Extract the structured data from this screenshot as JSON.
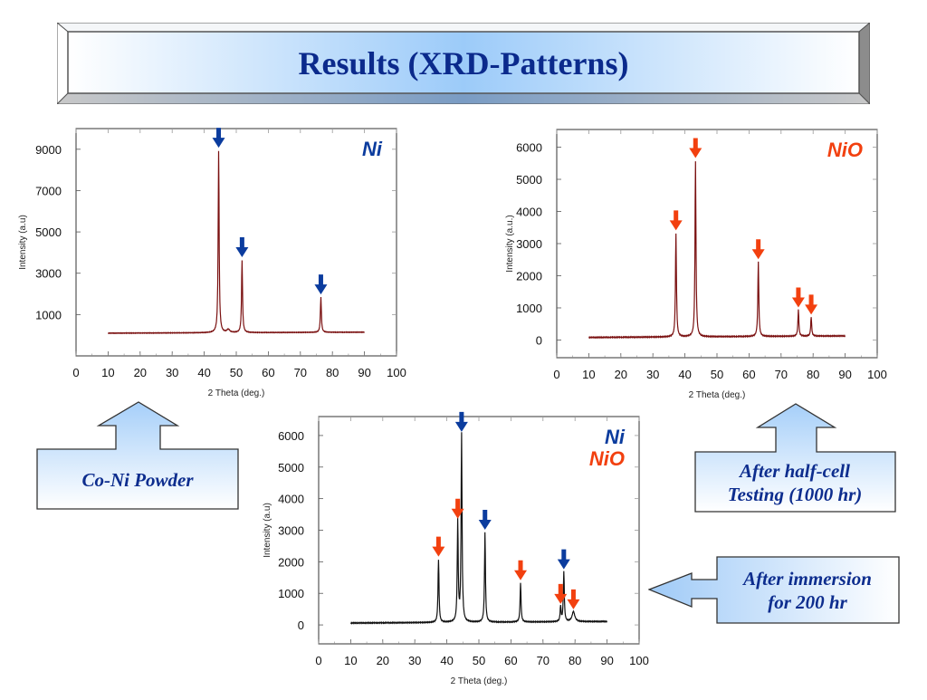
{
  "title": "Results (XRD-Patterns)",
  "colors": {
    "title_text": "#0b2a8c",
    "ni_arrow": "#0b3c9e",
    "nio_arrow": "#f2400f",
    "trace_single": "#7a1010",
    "trace_mixed": "#111111",
    "callout_fill_top": "#a9d1fb",
    "callout_fill_bottom": "#ffffff"
  },
  "callouts": {
    "co_ni_powder": "Co-Ni Powder",
    "half_cell_line1": "After half-cell",
    "half_cell_line2": "Testing (1000 hr)",
    "immersion_line1": "After immersion",
    "immersion_line2": "for 200 hr"
  },
  "chart_data": [
    {
      "type": "line",
      "title": "",
      "legend": [
        "Ni"
      ],
      "legend_position": "top-right",
      "xlabel": "2 Theta (deg.)",
      "ylabel": "Intensity (a.u)",
      "xlim": [
        0,
        100
      ],
      "x_ticks": [
        0,
        10,
        20,
        30,
        40,
        50,
        60,
        70,
        80,
        90,
        100
      ],
      "y_ticks": [
        1000,
        3000,
        5000,
        7000,
        9000
      ],
      "ylim": [
        -1000,
        10000
      ],
      "grid": false,
      "series": [
        {
          "name": "Co-Ni Powder",
          "baseline": 100,
          "x_range": [
            10,
            90
          ],
          "peaks": [
            {
              "x": 44.5,
              "y": 8900,
              "phase": "Ni"
            },
            {
              "x": 47.5,
              "y": 250,
              "phase": ""
            },
            {
              "x": 51.8,
              "y": 3600,
              "phase": "Ni"
            },
            {
              "x": 76.4,
              "y": 1800,
              "phase": "Ni"
            }
          ]
        }
      ],
      "annotations": [
        {
          "x": 44.5,
          "label": "Ni arrow"
        },
        {
          "x": 51.8,
          "label": "Ni arrow"
        },
        {
          "x": 76.4,
          "label": "Ni arrow"
        }
      ]
    },
    {
      "type": "line",
      "title": "",
      "legend": [
        "NiO"
      ],
      "legend_position": "top-right",
      "xlabel": "2 Theta (deg.)",
      "ylabel": "Intensity (a.u.)",
      "xlim": [
        0,
        100
      ],
      "x_ticks": [
        0,
        10,
        20,
        30,
        40,
        50,
        60,
        70,
        80,
        90,
        100
      ],
      "y_ticks": [
        0,
        1000,
        2000,
        3000,
        4000,
        5000,
        6000
      ],
      "ylim": [
        -550,
        6550
      ],
      "grid": false,
      "series": [
        {
          "name": "After half-cell Testing (1000 hr)",
          "baseline": 80,
          "x_range": [
            10,
            90
          ],
          "peaks": [
            {
              "x": 37.2,
              "y": 3300,
              "phase": "NiO"
            },
            {
              "x": 43.3,
              "y": 5550,
              "phase": "NiO"
            },
            {
              "x": 62.9,
              "y": 2400,
              "phase": "NiO"
            },
            {
              "x": 75.4,
              "y": 900,
              "phase": "NiO"
            },
            {
              "x": 79.4,
              "y": 680,
              "phase": "NiO"
            }
          ]
        }
      ],
      "annotations": [
        {
          "x": 37.2,
          "label": "NiO arrow"
        },
        {
          "x": 43.3,
          "label": "NiO arrow"
        },
        {
          "x": 62.9,
          "label": "NiO arrow"
        },
        {
          "x": 75.4,
          "label": "NiO arrow"
        },
        {
          "x": 79.4,
          "label": "NiO arrow"
        }
      ]
    },
    {
      "type": "line",
      "title": "",
      "legend": [
        "Ni",
        "NiO"
      ],
      "legend_position": "top-right",
      "xlabel": "2 Theta (deg.)",
      "ylabel": "Intensity (a.u)",
      "xlim": [
        0,
        100
      ],
      "x_ticks": [
        0,
        10,
        20,
        30,
        40,
        50,
        60,
        70,
        80,
        90,
        100
      ],
      "y_ticks": [
        0,
        1000,
        2000,
        3000,
        4000,
        5000,
        6000
      ],
      "ylim": [
        -600,
        6600
      ],
      "grid": false,
      "series": [
        {
          "name": "After immersion for 200 hr",
          "baseline": 60,
          "x_range": [
            10,
            90
          ],
          "peaks": [
            {
              "x": 37.4,
              "y": 2050,
              "phase": "NiO"
            },
            {
              "x": 43.4,
              "y": 3250,
              "phase": "NiO"
            },
            {
              "x": 44.6,
              "y": 6000,
              "phase": "Ni"
            },
            {
              "x": 51.9,
              "y": 2900,
              "phase": "Ni"
            },
            {
              "x": 63.0,
              "y": 1300,
              "phase": "NiO"
            },
            {
              "x": 75.5,
              "y": 550,
              "phase": "NiO"
            },
            {
              "x": 76.5,
              "y": 1650,
              "phase": "Ni"
            },
            {
              "x": 79.5,
              "y": 380,
              "phase": "NiO"
            }
          ]
        }
      ],
      "annotations": [
        {
          "x": 37.4,
          "label": "NiO arrow"
        },
        {
          "x": 43.4,
          "label": "NiO arrow"
        },
        {
          "x": 44.6,
          "label": "Ni arrow"
        },
        {
          "x": 51.9,
          "label": "Ni arrow"
        },
        {
          "x": 63.0,
          "label": "NiO arrow"
        },
        {
          "x": 75.5,
          "label": "NiO arrow"
        },
        {
          "x": 76.5,
          "label": "Ni arrow"
        },
        {
          "x": 79.5,
          "label": "NiO arrow"
        }
      ]
    }
  ]
}
